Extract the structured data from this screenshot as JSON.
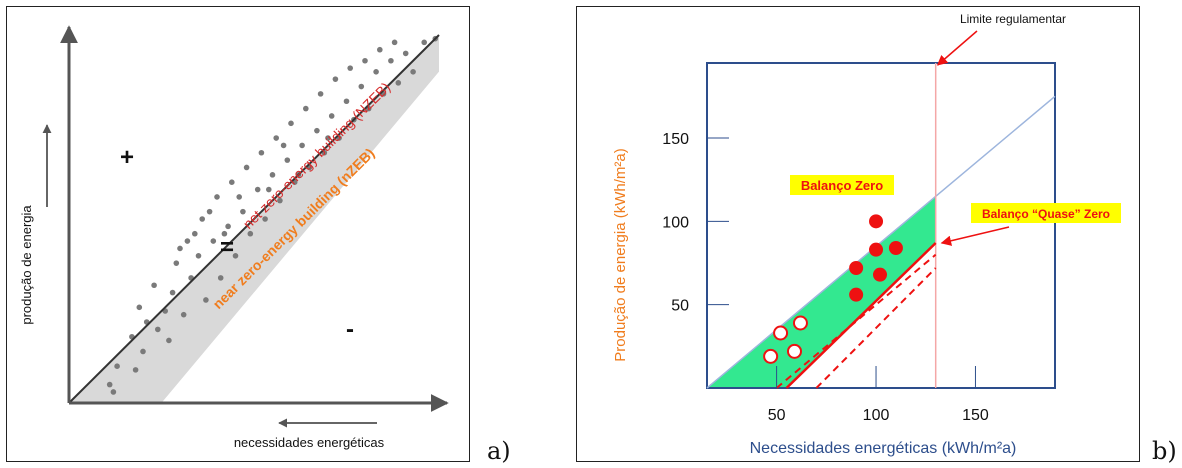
{
  "chart_data": [
    {
      "panel_label": "a)",
      "type": "scatter",
      "title": "",
      "xlabel": "necessidades energéticas",
      "ylabel": "produção de energia",
      "xlim": [
        0,
        1
      ],
      "ylim": [
        0,
        1
      ],
      "grid": false,
      "annotations": {
        "plus": "+",
        "equals": "=",
        "minus": "-",
        "nzeb_line_label": "net zero-energy building (NZEB)",
        "nzeb_band_label": "near zero-energy building (nZEB)"
      },
      "band": {
        "upper_line": {
          "x0": 0.0,
          "x1": 1.0
        },
        "lower_offset_x": 0.25
      },
      "colors": {
        "line_label": "#d62b2b",
        "band_label": "#f07d1e",
        "band": "#d9d9d9",
        "points": "#7a7a7a",
        "axes": "#555555"
      },
      "points": [
        [
          0.12,
          0.03
        ],
        [
          0.11,
          0.05
        ],
        [
          0.13,
          0.1
        ],
        [
          0.18,
          0.09
        ],
        [
          0.2,
          0.14
        ],
        [
          0.17,
          0.18
        ],
        [
          0.21,
          0.22
        ],
        [
          0.24,
          0.2
        ],
        [
          0.19,
          0.26
        ],
        [
          0.26,
          0.25
        ],
        [
          0.28,
          0.3
        ],
        [
          0.23,
          0.32
        ],
        [
          0.27,
          0.17
        ],
        [
          0.31,
          0.24
        ],
        [
          0.33,
          0.34
        ],
        [
          0.29,
          0.38
        ],
        [
          0.35,
          0.4
        ],
        [
          0.37,
          0.28
        ],
        [
          0.39,
          0.44
        ],
        [
          0.32,
          0.44
        ],
        [
          0.41,
          0.34
        ],
        [
          0.43,
          0.48
        ],
        [
          0.36,
          0.5
        ],
        [
          0.45,
          0.4
        ],
        [
          0.47,
          0.52
        ],
        [
          0.4,
          0.56
        ],
        [
          0.49,
          0.46
        ],
        [
          0.51,
          0.58
        ],
        [
          0.44,
          0.6
        ],
        [
          0.53,
          0.5
        ],
        [
          0.55,
          0.62
        ],
        [
          0.48,
          0.64
        ],
        [
          0.57,
          0.55
        ],
        [
          0.59,
          0.66
        ],
        [
          0.52,
          0.68
        ],
        [
          0.61,
          0.6
        ],
        [
          0.63,
          0.7
        ],
        [
          0.56,
          0.72
        ],
        [
          0.65,
          0.64
        ],
        [
          0.67,
          0.74
        ],
        [
          0.6,
          0.76
        ],
        [
          0.69,
          0.68
        ],
        [
          0.71,
          0.78
        ],
        [
          0.64,
          0.8
        ],
        [
          0.73,
          0.72
        ],
        [
          0.75,
          0.82
        ],
        [
          0.68,
          0.84
        ],
        [
          0.77,
          0.77
        ],
        [
          0.79,
          0.86
        ],
        [
          0.72,
          0.88
        ],
        [
          0.81,
          0.8
        ],
        [
          0.83,
          0.9
        ],
        [
          0.76,
          0.91
        ],
        [
          0.85,
          0.84
        ],
        [
          0.87,
          0.93
        ],
        [
          0.8,
          0.93
        ],
        [
          0.89,
          0.87
        ],
        [
          0.91,
          0.95
        ],
        [
          0.84,
          0.96
        ],
        [
          0.93,
          0.9
        ],
        [
          0.96,
          0.98
        ],
        [
          0.88,
          0.98
        ],
        [
          0.99,
          0.99
        ],
        [
          0.62,
          0.62
        ],
        [
          0.58,
          0.7
        ],
        [
          0.46,
          0.56
        ],
        [
          0.38,
          0.52
        ],
        [
          0.34,
          0.46
        ],
        [
          0.3,
          0.42
        ],
        [
          0.42,
          0.46
        ],
        [
          0.54,
          0.58
        ],
        [
          0.7,
          0.72
        ]
      ]
    },
    {
      "panel_label": "b)",
      "type": "scatter",
      "title": "",
      "xlabel": "Necessidades energéticas (kWh/m²a)",
      "ylabel": "Produção de energia (kWh/m²a)",
      "xlim": [
        15,
        190
      ],
      "ylim": [
        0,
        195
      ],
      "xticks": [
        50,
        100,
        150
      ],
      "yticks": [
        50,
        100,
        150
      ],
      "grid": false,
      "limite_regulamentar_x": 130,
      "annotations": {
        "limite": "Limite regulamentar",
        "balanco_zero": "Balanço Zero",
        "balanco_quase_zero": "Balanço “Quase” Zero"
      },
      "lines": {
        "diagonal": {
          "from": [
            15,
            0
          ],
          "to": [
            190,
            175
          ]
        },
        "dashed_middle": {
          "from": [
            50,
            0
          ],
          "to": [
            130,
            80
          ]
        },
        "solid_red": {
          "from": [
            55,
            0
          ],
          "to": [
            130,
            87
          ]
        },
        "dashed_lower": {
          "from": [
            70,
            0
          ],
          "to": [
            130,
            72
          ]
        }
      },
      "green_region": {
        "x_from": 15,
        "x_to": 130
      },
      "colors": {
        "green": "#33e890",
        "red": "#ee1111",
        "diagonal": "#9db5dd",
        "frame": "#2d4e8c",
        "ylabel": "#f07d1e",
        "xlabel": "#2d4e8c",
        "label_bg": "#ffff00",
        "limite_line": "#f4a7a7"
      },
      "filled_points": [
        [
          100,
          100
        ],
        [
          100,
          83
        ],
        [
          90,
          72
        ],
        [
          110,
          84
        ],
        [
          102,
          68
        ],
        [
          90,
          56
        ]
      ],
      "open_points": [
        [
          52,
          33
        ],
        [
          62,
          39
        ],
        [
          47,
          19
        ],
        [
          59,
          22
        ]
      ]
    }
  ],
  "panel_letters": {
    "a": "a)",
    "b": "b)"
  }
}
